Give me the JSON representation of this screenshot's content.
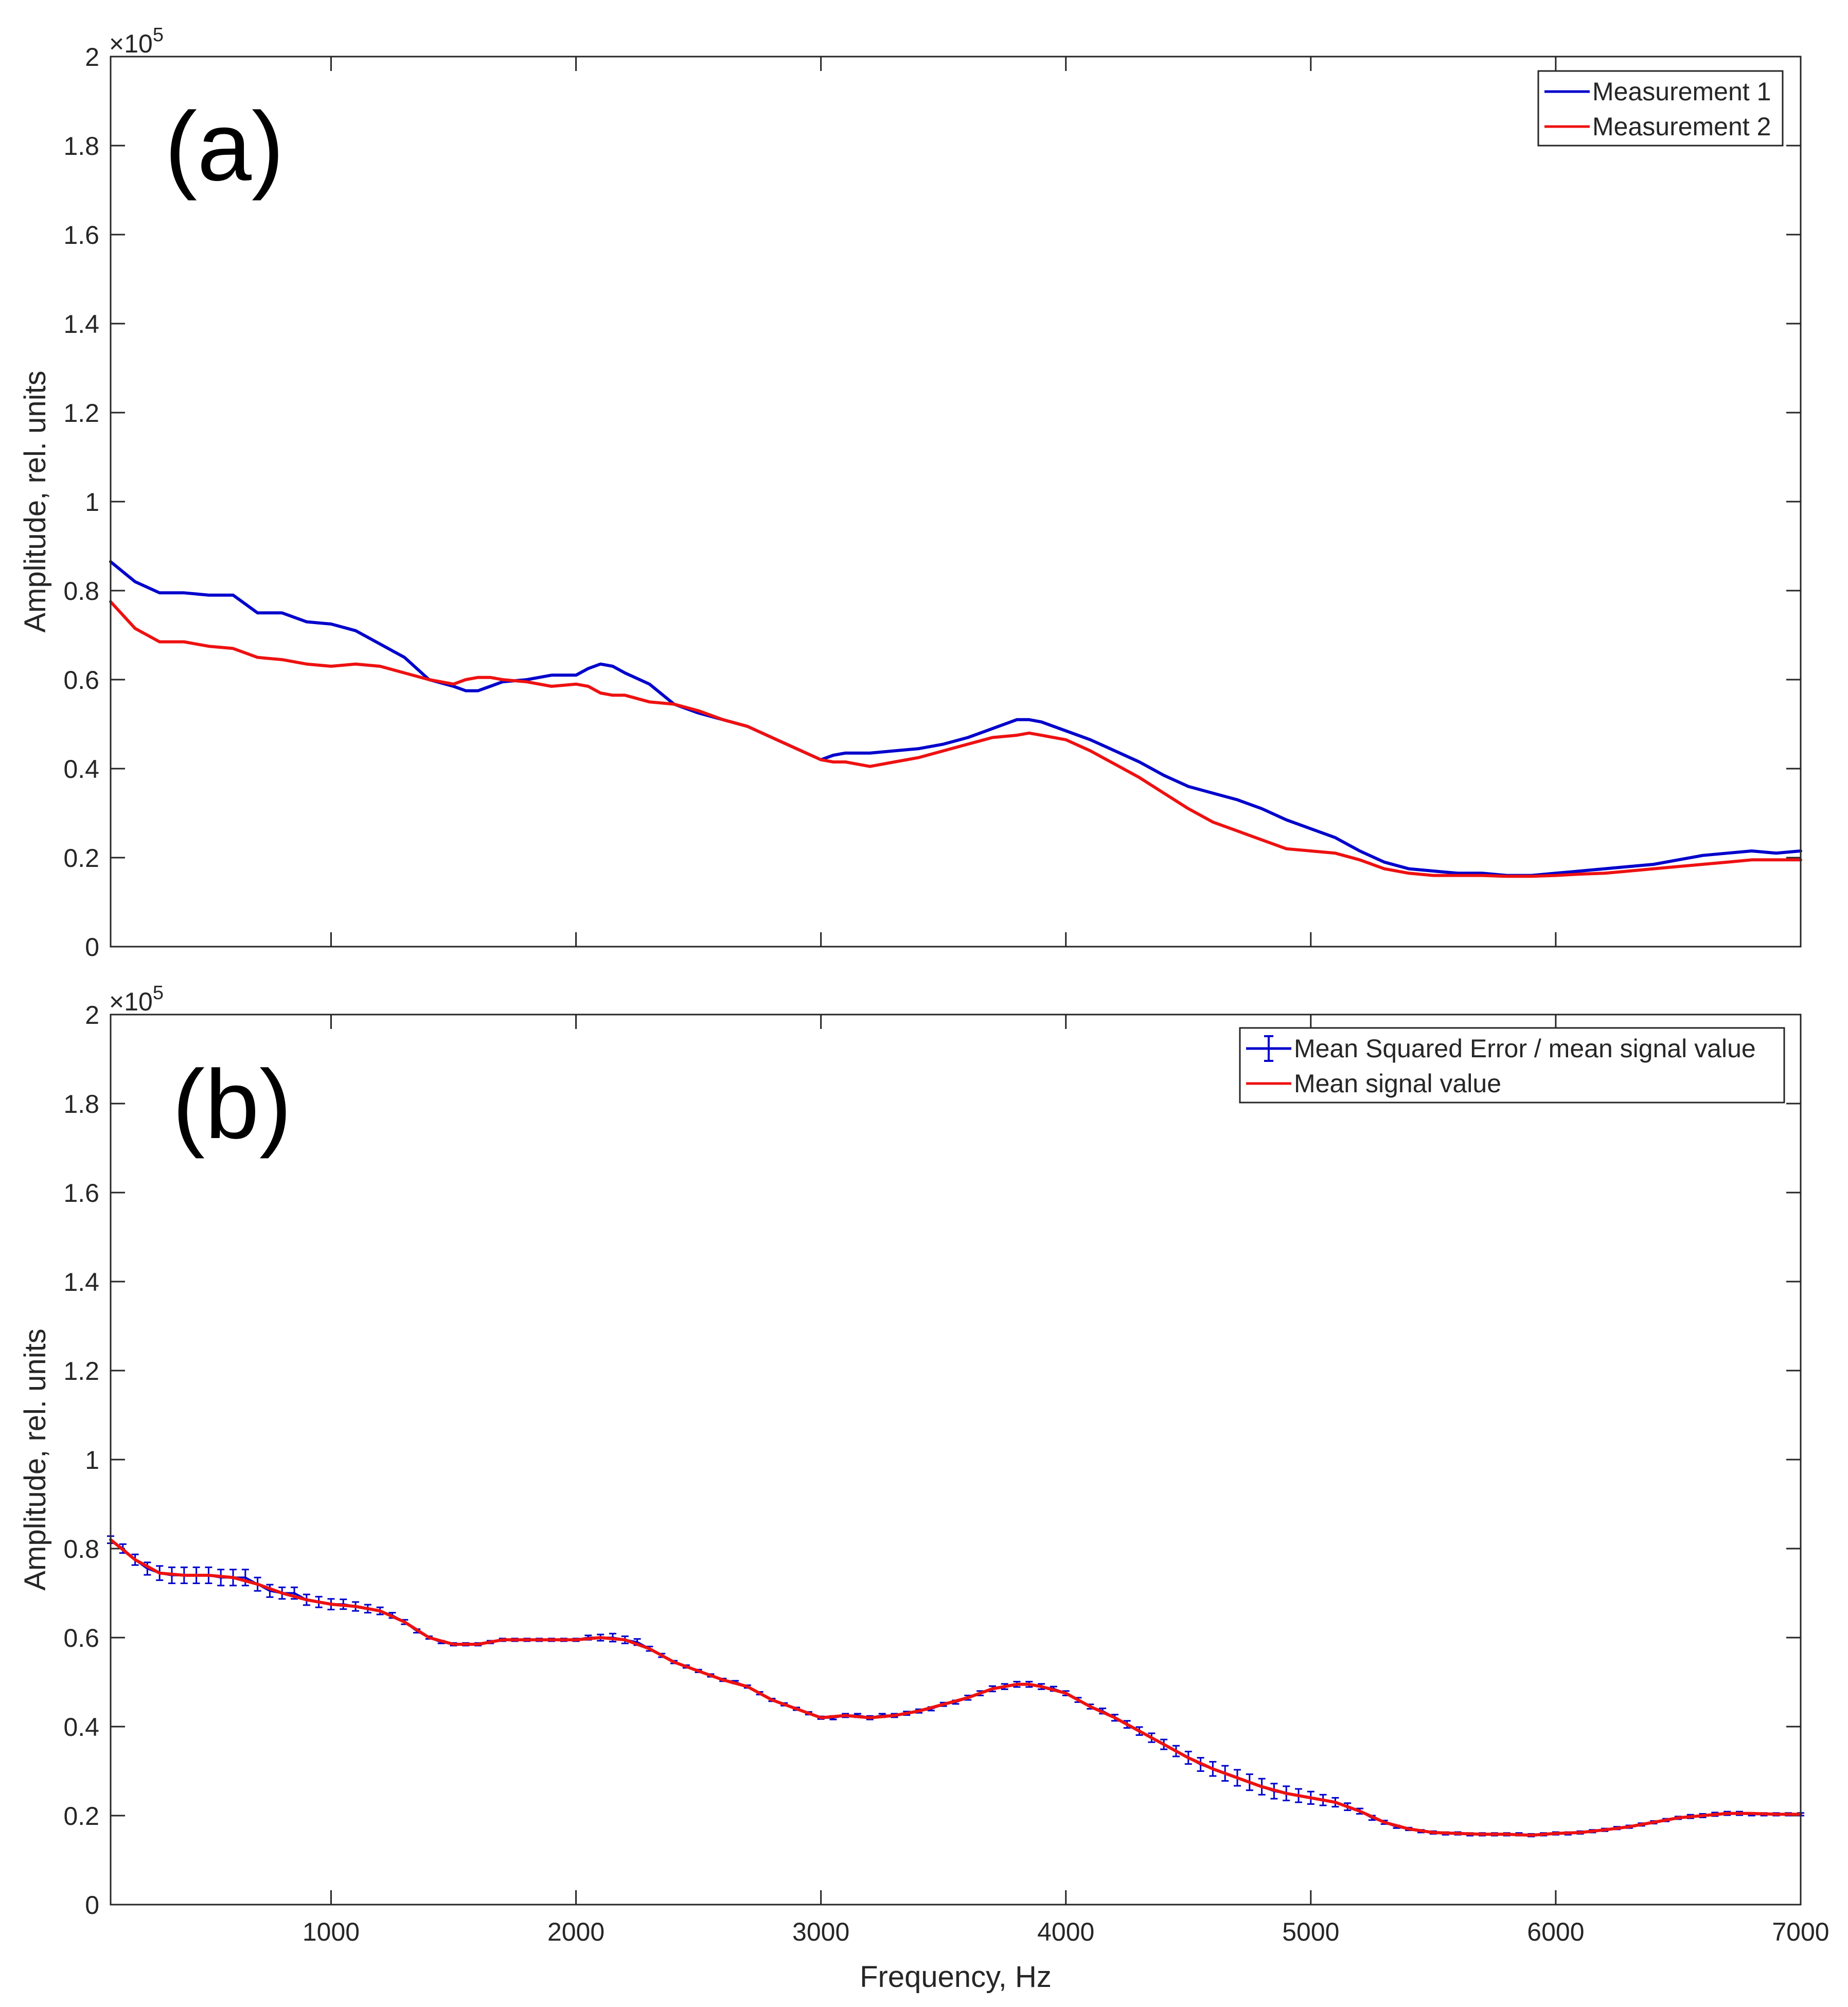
{
  "chart_data": [
    {
      "type": "line",
      "panel_label": "(a)",
      "ylabel": "Amplitude, rel. units",
      "xlabel": "",
      "exponent_label": "×10",
      "exponent_power": "5",
      "xlim": [
        100,
        7000
      ],
      "ylim": [
        0,
        2
      ],
      "x_ticks": [
        1000,
        2000,
        3000,
        4000,
        5000,
        6000,
        7000
      ],
      "x_tick_labels": [],
      "y_ticks": [
        0,
        0.2,
        0.4,
        0.6,
        0.8,
        1,
        1.2,
        1.4,
        1.6,
        1.8,
        2
      ],
      "y_tick_labels": [
        "0",
        "0.2",
        "0.4",
        "0.6",
        "0.8",
        "1",
        "1.2",
        "1.4",
        "1.6",
        "1.8",
        "2"
      ],
      "legend_position": "top-right",
      "series": [
        {
          "name": "Measurement 1",
          "color": "#0000cc",
          "x": [
            100,
            200,
            300,
            400,
            500,
            600,
            700,
            800,
            900,
            1000,
            1100,
            1200,
            1300,
            1400,
            1500,
            1550,
            1600,
            1650,
            1700,
            1800,
            1900,
            2000,
            2050,
            2100,
            2150,
            2200,
            2300,
            2400,
            2500,
            2600,
            2700,
            2800,
            2900,
            3000,
            3050,
            3100,
            3200,
            3300,
            3400,
            3500,
            3600,
            3700,
            3800,
            3850,
            3900,
            4000,
            4100,
            4200,
            4300,
            4400,
            4500,
            4600,
            4700,
            4800,
            4900,
            5000,
            5100,
            5200,
            5300,
            5400,
            5500,
            5600,
            5700,
            5800,
            5900,
            6000,
            6100,
            6200,
            6300,
            6400,
            6500,
            6600,
            6700,
            6800,
            6900,
            7000
          ],
          "y": [
            0.865,
            0.82,
            0.795,
            0.795,
            0.79,
            0.79,
            0.75,
            0.75,
            0.73,
            0.725,
            0.71,
            0.68,
            0.65,
            0.6,
            0.585,
            0.575,
            0.575,
            0.585,
            0.595,
            0.6,
            0.61,
            0.61,
            0.625,
            0.635,
            0.63,
            0.615,
            0.59,
            0.545,
            0.525,
            0.51,
            0.495,
            0.47,
            0.445,
            0.42,
            0.43,
            0.435,
            0.435,
            0.44,
            0.445,
            0.455,
            0.47,
            0.49,
            0.51,
            0.51,
            0.505,
            0.485,
            0.465,
            0.44,
            0.415,
            0.385,
            0.36,
            0.345,
            0.33,
            0.31,
            0.285,
            0.265,
            0.245,
            0.215,
            0.19,
            0.175,
            0.17,
            0.165,
            0.165,
            0.16,
            0.16,
            0.165,
            0.17,
            0.175,
            0.18,
            0.185,
            0.195,
            0.205,
            0.21,
            0.215,
            0.21,
            0.215
          ]
        },
        {
          "name": "Measurement 2",
          "color": "#ee1111",
          "x": [
            100,
            200,
            300,
            400,
            500,
            600,
            700,
            800,
            900,
            1000,
            1100,
            1200,
            1300,
            1400,
            1500,
            1550,
            1600,
            1650,
            1700,
            1800,
            1900,
            2000,
            2050,
            2100,
            2150,
            2200,
            2300,
            2400,
            2500,
            2600,
            2700,
            2800,
            2900,
            3000,
            3050,
            3100,
            3200,
            3300,
            3400,
            3500,
            3600,
            3700,
            3800,
            3850,
            3900,
            4000,
            4100,
            4200,
            4300,
            4400,
            4500,
            4600,
            4700,
            4800,
            4900,
            5000,
            5100,
            5200,
            5300,
            5400,
            5500,
            5600,
            5700,
            5800,
            5900,
            6000,
            6100,
            6200,
            6300,
            6400,
            6500,
            6600,
            6700,
            6800,
            6900,
            7000
          ],
          "y": [
            0.775,
            0.715,
            0.685,
            0.685,
            0.675,
            0.67,
            0.65,
            0.645,
            0.635,
            0.63,
            0.635,
            0.63,
            0.615,
            0.6,
            0.59,
            0.6,
            0.605,
            0.605,
            0.6,
            0.595,
            0.585,
            0.59,
            0.585,
            0.57,
            0.565,
            0.565,
            0.55,
            0.545,
            0.53,
            0.51,
            0.495,
            0.47,
            0.445,
            0.42,
            0.415,
            0.415,
            0.405,
            0.415,
            0.425,
            0.44,
            0.455,
            0.47,
            0.475,
            0.48,
            0.475,
            0.465,
            0.44,
            0.41,
            0.38,
            0.345,
            0.31,
            0.28,
            0.26,
            0.24,
            0.22,
            0.215,
            0.21,
            0.195,
            0.175,
            0.165,
            0.16,
            0.16,
            0.16,
            0.158,
            0.158,
            0.16,
            0.163,
            0.165,
            0.17,
            0.175,
            0.18,
            0.185,
            0.19,
            0.195,
            0.195,
            0.195
          ]
        }
      ]
    },
    {
      "type": "line",
      "panel_label": "(b)",
      "ylabel": "Amplitude, rel. units",
      "xlabel": "Frequency, Hz",
      "exponent_label": "×10",
      "exponent_power": "5",
      "xlim": [
        100,
        7000
      ],
      "ylim": [
        0,
        2
      ],
      "x_ticks": [
        1000,
        2000,
        3000,
        4000,
        5000,
        6000,
        7000
      ],
      "x_tick_labels": [
        "1000",
        "2000",
        "3000",
        "4000",
        "5000",
        "6000",
        "7000"
      ],
      "y_ticks": [
        0,
        0.2,
        0.4,
        0.6,
        0.8,
        1,
        1.2,
        1.4,
        1.6,
        1.8,
        2
      ],
      "y_tick_labels": [
        "0",
        "0.2",
        "0.4",
        "0.6",
        "0.8",
        "1",
        "1.2",
        "1.4",
        "1.6",
        "1.8",
        "2"
      ],
      "legend_position": "top-right",
      "series": [
        {
          "name": "Mean Squared Error / mean signal value",
          "color": "#0000cc",
          "kind": "errorbar",
          "x": [
            100,
            150,
            200,
            250,
            300,
            350,
            400,
            450,
            500,
            550,
            600,
            650,
            700,
            750,
            800,
            850,
            900,
            950,
            1000,
            1050,
            1100,
            1150,
            1200,
            1250,
            1300,
            1350,
            1400,
            1450,
            1500,
            1550,
            1600,
            1650,
            1700,
            1750,
            1800,
            1850,
            1900,
            1950,
            2000,
            2050,
            2100,
            2150,
            2200,
            2250,
            2300,
            2350,
            2400,
            2450,
            2500,
            2550,
            2600,
            2650,
            2700,
            2750,
            2800,
            2850,
            2900,
            2950,
            3000,
            3050,
            3100,
            3150,
            3200,
            3250,
            3300,
            3350,
            3400,
            3450,
            3500,
            3550,
            3600,
            3650,
            3700,
            3750,
            3800,
            3850,
            3900,
            3950,
            4000,
            4050,
            4100,
            4150,
            4200,
            4250,
            4300,
            4350,
            4400,
            4450,
            4500,
            4550,
            4600,
            4650,
            4700,
            4750,
            4800,
            4850,
            4900,
            4950,
            5000,
            5050,
            5100,
            5150,
            5200,
            5250,
            5300,
            5350,
            5400,
            5450,
            5500,
            5550,
            5600,
            5650,
            5700,
            5750,
            5800,
            5850,
            5900,
            5950,
            6000,
            6050,
            6100,
            6150,
            6200,
            6250,
            6300,
            6350,
            6400,
            6450,
            6500,
            6550,
            6600,
            6650,
            6700,
            6750,
            6800,
            6850,
            6900,
            6950,
            7000
          ],
          "y": [
            0.82,
            0.8,
            0.775,
            0.755,
            0.745,
            0.74,
            0.74,
            0.74,
            0.74,
            0.735,
            0.735,
            0.735,
            0.72,
            0.705,
            0.7,
            0.7,
            0.685,
            0.68,
            0.675,
            0.675,
            0.67,
            0.665,
            0.66,
            0.65,
            0.635,
            0.615,
            0.6,
            0.59,
            0.585,
            0.585,
            0.585,
            0.59,
            0.595,
            0.595,
            0.595,
            0.595,
            0.595,
            0.595,
            0.595,
            0.6,
            0.6,
            0.6,
            0.595,
            0.59,
            0.575,
            0.56,
            0.545,
            0.535,
            0.525,
            0.515,
            0.505,
            0.5,
            0.49,
            0.475,
            0.46,
            0.45,
            0.44,
            0.43,
            0.42,
            0.42,
            0.425,
            0.425,
            0.42,
            0.425,
            0.425,
            0.43,
            0.435,
            0.44,
            0.45,
            0.455,
            0.465,
            0.475,
            0.485,
            0.49,
            0.495,
            0.495,
            0.49,
            0.485,
            0.475,
            0.46,
            0.445,
            0.435,
            0.42,
            0.405,
            0.39,
            0.375,
            0.36,
            0.345,
            0.33,
            0.315,
            0.305,
            0.295,
            0.285,
            0.275,
            0.265,
            0.255,
            0.25,
            0.245,
            0.24,
            0.235,
            0.23,
            0.22,
            0.21,
            0.195,
            0.185,
            0.175,
            0.17,
            0.165,
            0.162,
            0.16,
            0.16,
            0.158,
            0.158,
            0.158,
            0.158,
            0.158,
            0.156,
            0.158,
            0.16,
            0.16,
            0.162,
            0.165,
            0.168,
            0.172,
            0.175,
            0.18,
            0.185,
            0.19,
            0.195,
            0.198,
            0.2,
            0.203,
            0.205,
            0.205,
            0.203,
            0.203,
            0.203,
            0.203,
            0.203
          ],
          "err": [
            0.008,
            0.01,
            0.012,
            0.014,
            0.016,
            0.018,
            0.018,
            0.018,
            0.018,
            0.018,
            0.018,
            0.018,
            0.015,
            0.014,
            0.013,
            0.013,
            0.012,
            0.012,
            0.012,
            0.011,
            0.01,
            0.009,
            0.008,
            0.006,
            0.005,
            0.004,
            0.003,
            0.003,
            0.003,
            0.003,
            0.003,
            0.003,
            0.003,
            0.003,
            0.003,
            0.003,
            0.003,
            0.003,
            0.003,
            0.005,
            0.007,
            0.009,
            0.008,
            0.007,
            0.005,
            0.004,
            0.003,
            0.003,
            0.003,
            0.003,
            0.003,
            0.003,
            0.003,
            0.003,
            0.003,
            0.003,
            0.003,
            0.003,
            0.003,
            0.004,
            0.004,
            0.004,
            0.004,
            0.004,
            0.004,
            0.004,
            0.004,
            0.004,
            0.004,
            0.004,
            0.005,
            0.005,
            0.006,
            0.006,
            0.006,
            0.006,
            0.006,
            0.005,
            0.005,
            0.005,
            0.005,
            0.006,
            0.007,
            0.008,
            0.009,
            0.01,
            0.011,
            0.012,
            0.014,
            0.015,
            0.016,
            0.017,
            0.018,
            0.018,
            0.018,
            0.017,
            0.016,
            0.015,
            0.014,
            0.012,
            0.01,
            0.008,
            0.006,
            0.005,
            0.004,
            0.003,
            0.003,
            0.003,
            0.003,
            0.003,
            0.003,
            0.003,
            0.003,
            0.003,
            0.003,
            0.003,
            0.003,
            0.003,
            0.003,
            0.003,
            0.003,
            0.003,
            0.003,
            0.003,
            0.003,
            0.003,
            0.003,
            0.003,
            0.003,
            0.004,
            0.004,
            0.004,
            0.004,
            0.004,
            0.003,
            0.003,
            0.003,
            0.003,
            0.003
          ]
        },
        {
          "name": "Mean signal value",
          "color": "#ee1111",
          "kind": "line",
          "x": [
            100,
            200,
            300,
            400,
            500,
            600,
            700,
            800,
            900,
            1000,
            1100,
            1200,
            1300,
            1400,
            1500,
            1600,
            1700,
            1800,
            1900,
            2000,
            2100,
            2200,
            2300,
            2400,
            2500,
            2600,
            2700,
            2800,
            2900,
            3000,
            3100,
            3200,
            3300,
            3400,
            3500,
            3600,
            3700,
            3800,
            3850,
            3900,
            4000,
            4100,
            4200,
            4300,
            4400,
            4500,
            4600,
            4700,
            4800,
            4900,
            5000,
            5100,
            5200,
            5300,
            5400,
            5500,
            5600,
            5700,
            5800,
            5900,
            6000,
            6100,
            6200,
            6300,
            6400,
            6500,
            6600,
            6700,
            6800,
            6900,
            7000
          ],
          "y": [
            0.82,
            0.775,
            0.745,
            0.74,
            0.74,
            0.735,
            0.72,
            0.7,
            0.685,
            0.675,
            0.67,
            0.66,
            0.635,
            0.6,
            0.585,
            0.585,
            0.595,
            0.595,
            0.595,
            0.595,
            0.6,
            0.595,
            0.575,
            0.545,
            0.525,
            0.505,
            0.49,
            0.46,
            0.44,
            0.42,
            0.425,
            0.42,
            0.425,
            0.435,
            0.45,
            0.465,
            0.485,
            0.495,
            0.495,
            0.49,
            0.475,
            0.445,
            0.42,
            0.39,
            0.36,
            0.33,
            0.305,
            0.285,
            0.265,
            0.25,
            0.24,
            0.23,
            0.21,
            0.185,
            0.17,
            0.162,
            0.16,
            0.158,
            0.158,
            0.156,
            0.16,
            0.162,
            0.168,
            0.175,
            0.185,
            0.195,
            0.2,
            0.205,
            0.205,
            0.203,
            0.203
          ]
        }
      ]
    }
  ]
}
